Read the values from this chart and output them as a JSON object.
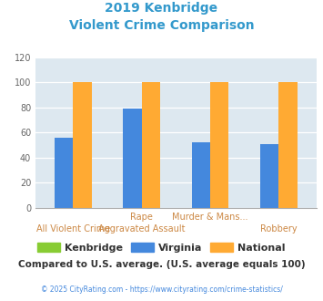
{
  "title_line1": "2019 Kenbridge",
  "title_line2": "Violent Crime Comparison",
  "title_color": "#3399cc",
  "cat_top": [
    "",
    "Rape",
    "Murder & Mans...",
    ""
  ],
  "cat_bottom": [
    "All Violent Crime",
    "Aggravated Assault",
    "",
    "Robbery"
  ],
  "kenbridge_values": [
    0,
    0,
    0,
    0
  ],
  "virginia_values": [
    56,
    79,
    52,
    51
  ],
  "national_values": [
    100,
    100,
    100,
    100
  ],
  "kenbridge_color": "#88cc33",
  "virginia_color": "#4488dd",
  "national_color": "#ffaa33",
  "plot_bg": "#dde8f0",
  "ylim": [
    0,
    120
  ],
  "yticks": [
    0,
    20,
    40,
    60,
    80,
    100,
    120
  ],
  "footnote": "Compared to U.S. average. (U.S. average equals 100)",
  "footnote_color": "#333333",
  "copyright": "© 2025 CityRating.com - https://www.cityrating.com/crime-statistics/",
  "copyright_color": "#4488dd",
  "legend_labels": [
    "Kenbridge",
    "Virginia",
    "National"
  ]
}
